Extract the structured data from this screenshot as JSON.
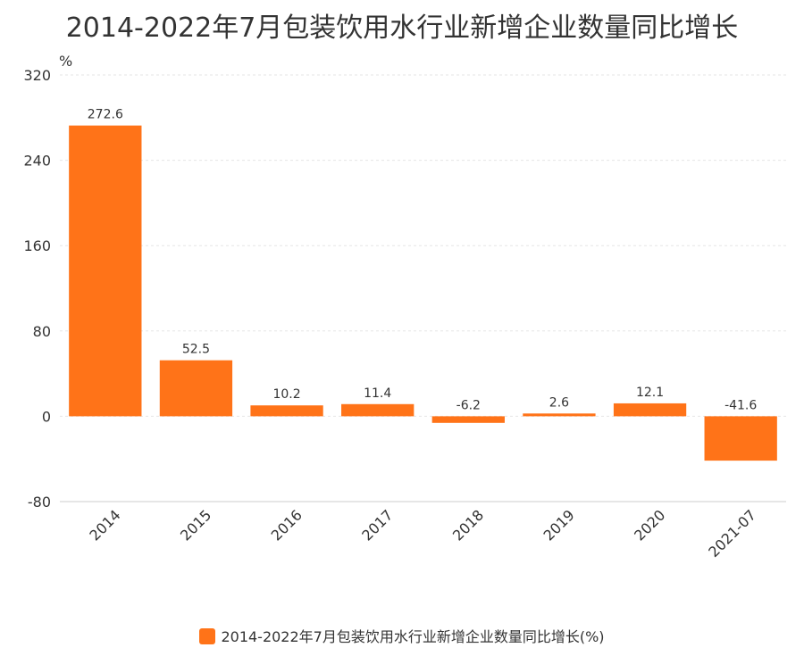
{
  "chart_data": {
    "type": "bar",
    "title": "2014-2022年7月包装饮用水行业新增企业数量同比增长",
    "y_unit_label": "%",
    "categories": [
      "2014",
      "2015",
      "2016",
      "2017",
      "2018",
      "2019",
      "2020",
      "2021-07"
    ],
    "series": [
      {
        "name": "2014-2022年7月包装饮用水行业新增企业数量同比增长(%)",
        "values": [
          272.6,
          52.5,
          10.2,
          11.4,
          -6.2,
          2.6,
          12.1,
          -41.6
        ],
        "data_labels": [
          "272.6",
          "52.5",
          "10.2",
          "11.4",
          "-6.2",
          "2.6",
          "12.1",
          "-41.6"
        ],
        "color": "#ff7318"
      }
    ],
    "ylim": [
      -80,
      320
    ],
    "yticks": [
      -80,
      0,
      80,
      160,
      240,
      320
    ],
    "ytick_labels": [
      "-80",
      "0",
      "80",
      "160",
      "240",
      "320"
    ],
    "grid": true,
    "legend_position": "bottom"
  }
}
